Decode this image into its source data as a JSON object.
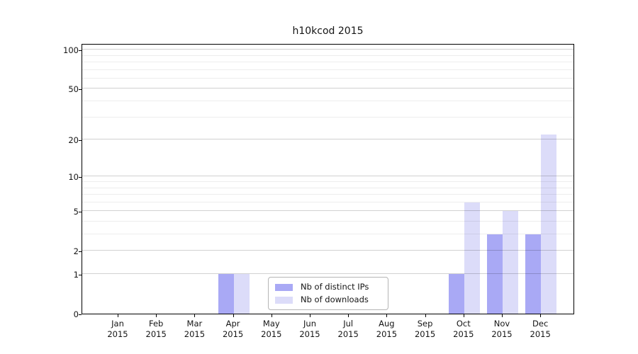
{
  "chart_data": {
    "type": "bar",
    "title": "h10kcod 2015",
    "categories": [
      "Jan",
      "Feb",
      "Mar",
      "Apr",
      "May",
      "Jun",
      "Jul",
      "Aug",
      "Sep",
      "Oct",
      "Nov",
      "Dec"
    ],
    "year": "2015",
    "series": [
      {
        "name": "Nb of distinct IPs",
        "color": "#a9a9f5",
        "values": [
          0,
          0,
          0,
          1,
          0,
          0,
          0,
          0,
          0,
          1,
          3,
          3
        ]
      },
      {
        "name": "Nb of downloads",
        "color": "#dcdcf9",
        "values": [
          0,
          0,
          0,
          1,
          0,
          0,
          0,
          0,
          0,
          6,
          5,
          22
        ]
      }
    ],
    "xlabel": "",
    "ylabel": "",
    "yscale": "log1p",
    "ylim": [
      0,
      112
    ],
    "y_ticks": [
      0,
      1,
      2,
      5,
      10,
      20,
      50,
      100
    ],
    "y_minor_ticks": [
      3,
      4,
      6,
      7,
      8,
      9,
      30,
      40,
      60,
      70,
      80,
      90
    ],
    "grid": true,
    "grid_above_bars": true,
    "legend_position": "lower center",
    "colors": {
      "axis": "#000000",
      "text": "#151515",
      "grid_major": "#d2d2d2",
      "grid_minor": "#ededed",
      "legend_border": "#b5b5b5",
      "background": "#ffffff"
    }
  }
}
